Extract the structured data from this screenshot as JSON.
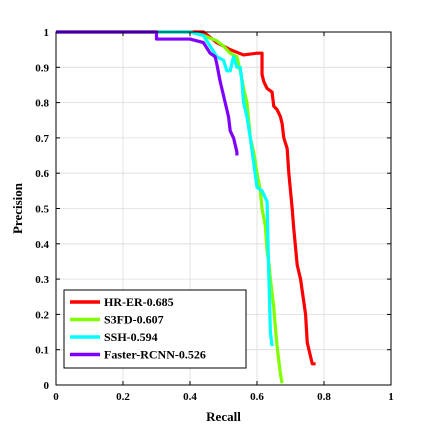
{
  "chart_data": {
    "type": "line",
    "title": "",
    "xlabel": "Recall",
    "ylabel": "Precision",
    "xlim": [
      0,
      1
    ],
    "ylim": [
      0,
      1
    ],
    "xticks": [
      "0",
      "0.2",
      "0.4",
      "0.6",
      "0.8",
      "1"
    ],
    "yticks": [
      "0",
      "0.1",
      "0.2",
      "0.3",
      "0.4",
      "0.5",
      "0.6",
      "0.7",
      "0.8",
      "0.9",
      "1"
    ],
    "grid": true,
    "legend_position": "bottom-left",
    "series": [
      {
        "name": "HR-ER-0.685",
        "color": "#ff0000",
        "points": [
          [
            0,
            1
          ],
          [
            0.44,
            1
          ],
          [
            0.48,
            0.97
          ],
          [
            0.52,
            0.95
          ],
          [
            0.56,
            0.935
          ],
          [
            0.6,
            0.94
          ],
          [
            0.615,
            0.94
          ],
          [
            0.615,
            0.88
          ],
          [
            0.62,
            0.86
          ],
          [
            0.63,
            0.84
          ],
          [
            0.645,
            0.83
          ],
          [
            0.65,
            0.79
          ],
          [
            0.66,
            0.78
          ],
          [
            0.67,
            0.76
          ],
          [
            0.675,
            0.74
          ],
          [
            0.68,
            0.7
          ],
          [
            0.69,
            0.67
          ],
          [
            0.695,
            0.6
          ],
          [
            0.7,
            0.55
          ],
          [
            0.705,
            0.5
          ],
          [
            0.71,
            0.44
          ],
          [
            0.72,
            0.34
          ],
          [
            0.73,
            0.3
          ],
          [
            0.745,
            0.2
          ],
          [
            0.75,
            0.12
          ],
          [
            0.76,
            0.08
          ],
          [
            0.765,
            0.06
          ],
          [
            0.775,
            0.06
          ]
        ]
      },
      {
        "name": "S3FD-0.607",
        "color": "#7fff00",
        "points": [
          [
            0,
            1
          ],
          [
            0.4,
            1
          ],
          [
            0.44,
            0.99
          ],
          [
            0.48,
            0.975
          ],
          [
            0.5,
            0.96
          ],
          [
            0.52,
            0.94
          ],
          [
            0.54,
            0.93
          ],
          [
            0.55,
            0.89
          ],
          [
            0.56,
            0.84
          ],
          [
            0.57,
            0.8
          ],
          [
            0.58,
            0.7
          ],
          [
            0.59,
            0.66
          ],
          [
            0.595,
            0.63
          ],
          [
            0.6,
            0.6
          ],
          [
            0.61,
            0.55
          ],
          [
            0.615,
            0.5
          ],
          [
            0.625,
            0.45
          ],
          [
            0.63,
            0.38
          ],
          [
            0.635,
            0.35
          ],
          [
            0.64,
            0.3
          ],
          [
            0.65,
            0.22
          ],
          [
            0.655,
            0.16
          ],
          [
            0.66,
            0.11
          ],
          [
            0.665,
            0.07
          ],
          [
            0.67,
            0.03
          ],
          [
            0.675,
            0.005
          ]
        ]
      },
      {
        "name": "SSH-0.594",
        "color": "#00ffff",
        "points": [
          [
            0,
            1
          ],
          [
            0.4,
            1
          ],
          [
            0.44,
            0.99
          ],
          [
            0.46,
            0.96
          ],
          [
            0.48,
            0.93
          ],
          [
            0.5,
            0.92
          ],
          [
            0.51,
            0.89
          ],
          [
            0.52,
            0.89
          ],
          [
            0.53,
            0.93
          ],
          [
            0.54,
            0.9
          ],
          [
            0.55,
            0.9
          ],
          [
            0.555,
            0.86
          ],
          [
            0.56,
            0.8
          ],
          [
            0.57,
            0.76
          ],
          [
            0.58,
            0.7
          ],
          [
            0.59,
            0.63
          ],
          [
            0.6,
            0.56
          ],
          [
            0.615,
            0.55
          ],
          [
            0.62,
            0.54
          ],
          [
            0.63,
            0.52
          ],
          [
            0.635,
            0.32
          ],
          [
            0.64,
            0.15
          ],
          [
            0.645,
            0.11
          ]
        ]
      },
      {
        "name": "Faster-RCNN-0.526",
        "color": "#8000ff",
        "points": [
          [
            0,
            1
          ],
          [
            0.1,
            1
          ],
          [
            0.3,
            1
          ],
          [
            0.3,
            0.98
          ],
          [
            0.34,
            0.98
          ],
          [
            0.4,
            0.98
          ],
          [
            0.44,
            0.97
          ],
          [
            0.46,
            0.94
          ],
          [
            0.475,
            0.93
          ],
          [
            0.48,
            0.91
          ],
          [
            0.49,
            0.86
          ],
          [
            0.5,
            0.82
          ],
          [
            0.51,
            0.78
          ],
          [
            0.515,
            0.76
          ],
          [
            0.52,
            0.72
          ],
          [
            0.53,
            0.7
          ],
          [
            0.535,
            0.68
          ],
          [
            0.54,
            0.66
          ],
          [
            0.54,
            0.65
          ]
        ]
      }
    ]
  }
}
